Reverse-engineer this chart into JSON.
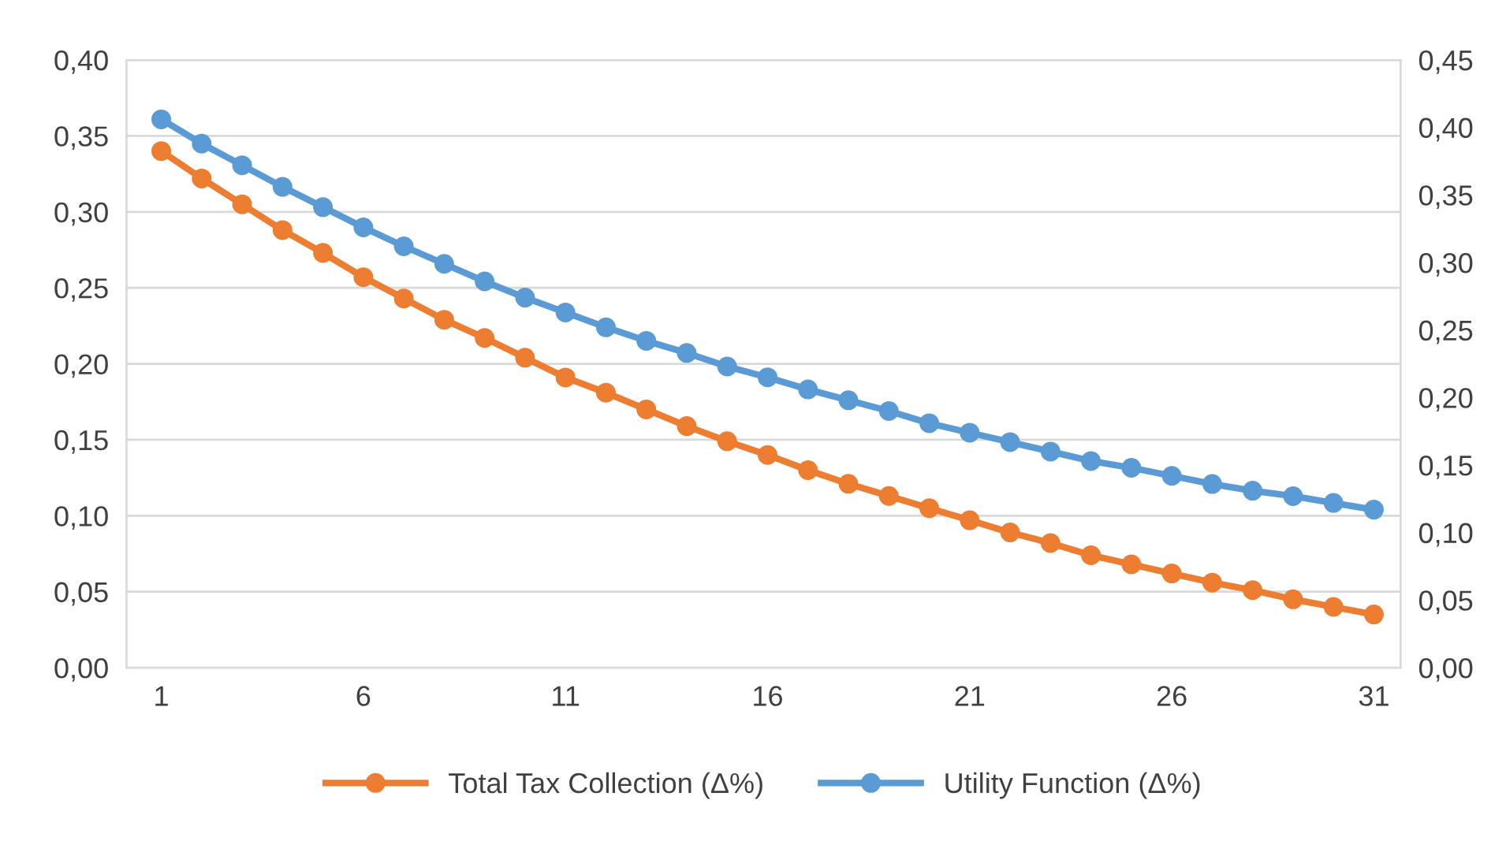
{
  "chart_data": {
    "type": "line",
    "categories": [
      "1",
      null,
      null,
      null,
      null,
      "6",
      null,
      null,
      null,
      null,
      "11",
      null,
      null,
      null,
      null,
      "16",
      null,
      null,
      null,
      null,
      "21",
      null,
      null,
      null,
      null,
      "26",
      null,
      null,
      null,
      null,
      "31"
    ],
    "series": [
      {
        "name": "Total Tax Collection (Δ%)",
        "color": "#ed7d31",
        "values": [
          0.34,
          0.322,
          0.305,
          0.288,
          0.273,
          0.257,
          0.243,
          0.229,
          0.217,
          0.204,
          0.191,
          0.181,
          0.17,
          0.159,
          0.149,
          0.14,
          0.13,
          0.121,
          0.113,
          0.105,
          0.097,
          0.089,
          0.082,
          0.074,
          0.068,
          0.062,
          0.056,
          0.051,
          0.045,
          0.04,
          0.035
        ]
      },
      {
        "name": "Utility Function (Δ%)",
        "color": "#5b9bd5",
        "axis": "y2",
        "values": [
          0.406,
          0.388,
          0.372,
          0.356,
          0.341,
          0.326,
          0.312,
          0.299,
          0.286,
          0.274,
          0.263,
          0.252,
          0.242,
          0.233,
          0.223,
          0.215,
          0.206,
          0.198,
          0.19,
          0.181,
          0.174,
          0.167,
          0.16,
          0.153,
          0.148,
          0.142,
          0.136,
          0.131,
          0.127,
          0.122,
          0.117
        ]
      }
    ],
    "ylim": [
      0,
      0.4
    ],
    "yticks": [
      {
        "value": 0,
        "label": "0,00"
      },
      {
        "value": 0.05,
        "label": "0,05"
      },
      {
        "value": 0.1,
        "label": "0,10"
      },
      {
        "value": 0.15,
        "label": "0,15"
      },
      {
        "value": 0.2,
        "label": "0,20"
      },
      {
        "value": 0.25,
        "label": "0,25"
      },
      {
        "value": 0.3,
        "label": "0,30"
      },
      {
        "value": 0.35,
        "label": "0,35"
      },
      {
        "value": 0.4,
        "label": "0,40"
      }
    ],
    "y2lim": [
      0,
      0.45
    ],
    "y2ticks": [
      {
        "value": 0,
        "label": "0,00"
      },
      {
        "value": 0.05,
        "label": "0,05"
      },
      {
        "value": 0.1,
        "label": "0,10"
      },
      {
        "value": 0.15,
        "label": "0,15"
      },
      {
        "value": 0.2,
        "label": "0,20"
      },
      {
        "value": 0.25,
        "label": "0,25"
      },
      {
        "value": 0.3,
        "label": "0,30"
      },
      {
        "value": 0.35,
        "label": "0,35"
      },
      {
        "value": 0.4,
        "label": "0,40"
      },
      {
        "value": 0.45,
        "label": "0,45"
      }
    ],
    "grid": "y",
    "legend": "bottom",
    "marker": "circle",
    "line_style": "solid"
  }
}
